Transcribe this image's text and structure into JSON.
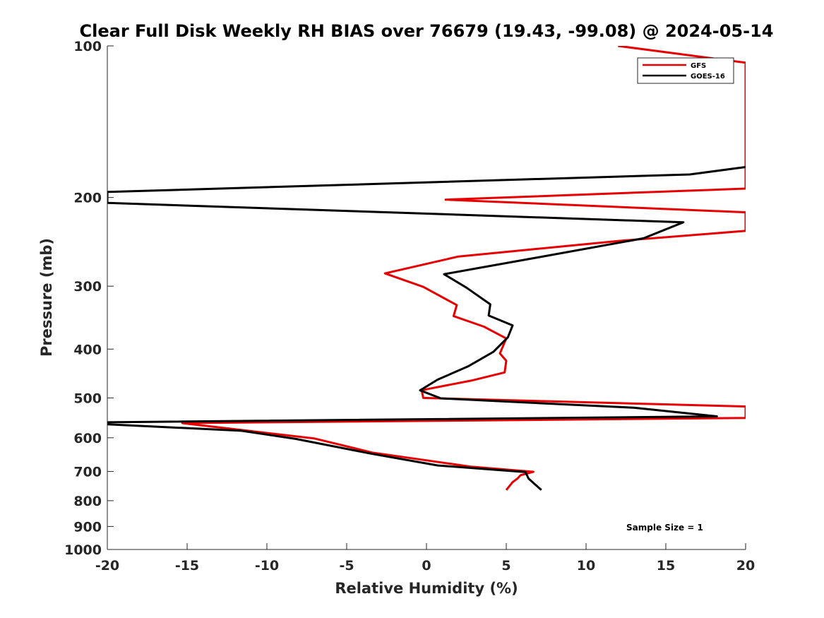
{
  "chart_data": {
    "type": "line",
    "title": "Clear Full Disk Weekly RH BIAS over 76679 (19.43, -99.08) @ 2024-05-14",
    "xlabel": "Relative Humidity (%)",
    "ylabel": "Pressure (mb)",
    "xlim": [
      -20,
      20
    ],
    "ylim": [
      100,
      1000
    ],
    "yscale": "log",
    "yreversed": true,
    "grid": false,
    "legend_position": "top-right",
    "x_ticks": [
      "-20",
      "-15",
      "-10",
      "-5",
      "0",
      "5",
      "10",
      "15",
      "20"
    ],
    "x_tick_values": [
      -20,
      -15,
      -10,
      -5,
      0,
      5,
      10,
      15,
      20
    ],
    "y_ticks": [
      "100",
      "200",
      "300",
      "400",
      "500",
      "600",
      "700",
      "800",
      "900",
      "1000"
    ],
    "y_tick_values": [
      100,
      200,
      300,
      400,
      500,
      600,
      700,
      800,
      900,
      1000
    ],
    "annotation": "Sample Size = 1",
    "series": [
      {
        "name": "GFS",
        "color": "#e60000",
        "points": [
          [
            12,
            100
          ],
          [
            20,
            108
          ],
          [
            20,
            192
          ],
          [
            1.2,
            202
          ],
          [
            20,
            214
          ],
          [
            20,
            233
          ],
          [
            12,
            244
          ],
          [
            2,
            262
          ],
          [
            -2.6,
            283
          ],
          [
            -0.2,
            301
          ],
          [
            1.9,
            327
          ],
          [
            1.7,
            344
          ],
          [
            3.6,
            361
          ],
          [
            5.0,
            381
          ],
          [
            4.6,
            408
          ],
          [
            5.0,
            422
          ],
          [
            4.9,
            445
          ],
          [
            2.8,
            462
          ],
          [
            0.1,
            480
          ],
          [
            -0.3,
            483
          ],
          [
            -0.2,
            500
          ],
          [
            20,
            520
          ],
          [
            20,
            548
          ],
          [
            -15.3,
            561
          ],
          [
            -15.1,
            562
          ],
          [
            -11.8,
            578
          ],
          [
            -7,
            602
          ],
          [
            -3.4,
            642
          ],
          [
            2.8,
            685
          ],
          [
            6.7,
            701
          ],
          [
            5.9,
            712
          ],
          [
            5.7,
            723
          ],
          [
            5.4,
            735
          ],
          [
            5.0,
            762
          ]
        ]
      },
      {
        "name": "GOES-16",
        "color": "#000000",
        "points": [
          [
            20,
            174
          ],
          [
            16.5,
            180
          ],
          [
            -20,
            195
          ],
          [
            -20,
            205
          ],
          [
            16.1,
            224
          ],
          [
            13.6,
            241
          ],
          [
            7.0,
            263
          ],
          [
            1.1,
            284
          ],
          [
            2.5,
            302
          ],
          [
            4.0,
            326
          ],
          [
            3.9,
            343
          ],
          [
            5.4,
            359
          ],
          [
            5.1,
            379
          ],
          [
            4.2,
            405
          ],
          [
            2.6,
            433
          ],
          [
            0.7,
            460
          ],
          [
            -0.4,
            483
          ],
          [
            0.9,
            501
          ],
          [
            13.0,
            523
          ],
          [
            18.2,
            544
          ],
          [
            -20,
            559
          ],
          [
            -20,
            564
          ],
          [
            -11.6,
            581
          ],
          [
            -8.2,
            603
          ],
          [
            -3.5,
            645
          ],
          [
            0.7,
            681
          ],
          [
            6.2,
            702
          ],
          [
            6.4,
            723
          ],
          [
            7.2,
            762
          ]
        ]
      }
    ]
  }
}
